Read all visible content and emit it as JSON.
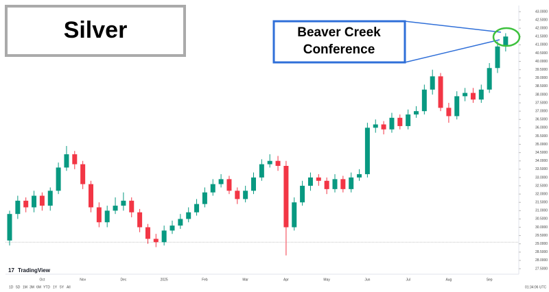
{
  "chart_data": {
    "type": "candlestick",
    "title": "Silver",
    "annotation_lines": [
      "Beaver Creek",
      "Conference"
    ],
    "up_color": "#089981",
    "down_color": "#f23645",
    "hline": 29.1,
    "grid": false,
    "categories": [
      null,
      null,
      null,
      null,
      "Oct",
      null,
      null,
      null,
      null,
      "Nov",
      null,
      null,
      null,
      null,
      "Dec",
      null,
      null,
      null,
      null,
      "2025",
      null,
      null,
      null,
      null,
      "Feb",
      null,
      null,
      null,
      null,
      "Mar",
      null,
      null,
      null,
      null,
      "Apr",
      null,
      null,
      null,
      null,
      "May",
      null,
      null,
      null,
      null,
      "Jun",
      null,
      null,
      null,
      null,
      "Jul",
      null,
      null,
      null,
      null,
      "Aug",
      null,
      null,
      null,
      null,
      "Sep",
      null,
      null
    ],
    "open": [
      29.2,
      30.8,
      31.6,
      31.2,
      31.9,
      31.3,
      32.2,
      33.6,
      34.4,
      33.8,
      32.6,
      31.2,
      30.3,
      31.0,
      31.3,
      31.6,
      30.9,
      30.0,
      29.3,
      29.1,
      29.8,
      30.1,
      30.5,
      30.9,
      31.4,
      32.1,
      32.6,
      32.9,
      32.2,
      31.7,
      32.2,
      33.0,
      33.8,
      34.0,
      33.7,
      30.0,
      31.5,
      32.5,
      33.0,
      32.8,
      32.3,
      32.9,
      32.3,
      33.0,
      33.2,
      36.0,
      36.2,
      35.9,
      36.6,
      36.1,
      36.8,
      37.0,
      38.3,
      39.1,
      37.2,
      36.7,
      37.9,
      38.1,
      37.7,
      38.3,
      39.6,
      40.9
    ],
    "high": [
      31.0,
      31.9,
      31.8,
      32.2,
      32.1,
      32.4,
      33.9,
      34.9,
      34.6,
      34.0,
      32.8,
      31.5,
      31.3,
      31.8,
      32.1,
      31.8,
      31.1,
      30.2,
      29.6,
      30.1,
      30.4,
      30.8,
      31.2,
      31.7,
      32.4,
      32.9,
      33.2,
      33.1,
      32.4,
      32.5,
      33.3,
      34.1,
      34.4,
      34.3,
      34.0,
      31.8,
      32.8,
      33.3,
      33.2,
      33.0,
      33.2,
      33.1,
      33.3,
      33.5,
      36.3,
      36.5,
      36.4,
      36.9,
      36.8,
      37.1,
      37.3,
      38.6,
      39.5,
      39.3,
      37.5,
      38.2,
      38.4,
      38.4,
      38.6,
      39.9,
      41.2,
      41.7
    ],
    "low": [
      28.9,
      30.5,
      30.9,
      30.9,
      31.0,
      31.0,
      32.0,
      33.4,
      33.5,
      32.3,
      30.9,
      30.0,
      30.0,
      30.8,
      31.0,
      30.6,
      29.7,
      29.0,
      28.8,
      28.9,
      29.6,
      29.9,
      30.3,
      30.7,
      31.2,
      31.9,
      32.4,
      32.0,
      31.4,
      31.5,
      32.0,
      32.8,
      33.6,
      33.4,
      28.3,
      29.8,
      31.3,
      32.2,
      32.5,
      32.0,
      32.1,
      32.1,
      32.1,
      32.8,
      33.0,
      35.7,
      35.6,
      35.7,
      35.9,
      35.9,
      36.6,
      36.8,
      38.0,
      37.0,
      36.3,
      36.5,
      37.6,
      37.5,
      37.5,
      38.1,
      39.3,
      40.6
    ],
    "close": [
      30.8,
      31.6,
      31.2,
      31.9,
      31.3,
      32.2,
      33.6,
      34.4,
      33.8,
      32.6,
      31.2,
      30.3,
      31.0,
      31.3,
      31.6,
      30.9,
      30.0,
      29.3,
      29.1,
      29.8,
      30.1,
      30.5,
      30.9,
      31.4,
      32.1,
      32.6,
      32.9,
      32.2,
      31.7,
      32.2,
      33.0,
      33.8,
      34.0,
      33.7,
      30.0,
      31.5,
      32.5,
      33.0,
      32.8,
      32.3,
      32.9,
      32.3,
      33.0,
      33.2,
      36.0,
      36.2,
      35.9,
      36.6,
      36.1,
      36.8,
      37.0,
      38.3,
      39.1,
      37.2,
      36.7,
      37.9,
      38.1,
      37.7,
      38.3,
      39.6,
      40.9,
      41.5
    ],
    "ylim": [
      27.5,
      43.0
    ],
    "yticks": [
      {
        "value": 27.5,
        "label": "27.5000"
      },
      {
        "value": 28,
        "label": "28.0000"
      },
      {
        "value": 28.5,
        "label": "28.5000"
      },
      {
        "value": 29,
        "label": "29.0000"
      },
      {
        "value": 29.5,
        "label": "29.5000"
      },
      {
        "value": 30,
        "label": "30.0000"
      },
      {
        "value": 30.5,
        "label": "30.5000"
      },
      {
        "value": 31,
        "label": "31.0000"
      },
      {
        "value": 31.5,
        "label": "31.5000"
      },
      {
        "value": 32,
        "label": "32.0000"
      },
      {
        "value": 32.5,
        "label": "32.5000"
      },
      {
        "value": 33,
        "label": "33.0000"
      },
      {
        "value": 33.5,
        "label": "33.5000"
      },
      {
        "value": 34,
        "label": "34.0000"
      },
      {
        "value": 34.5,
        "label": "34.5000"
      },
      {
        "value": 35,
        "label": "35.0000"
      },
      {
        "value": 35.5,
        "label": "35.5000"
      },
      {
        "value": 36,
        "label": "36.0000"
      },
      {
        "value": 36.5,
        "label": "36.5000"
      },
      {
        "value": 37,
        "label": "37.0000"
      },
      {
        "value": 37.5,
        "label": "37.5000"
      },
      {
        "value": 38,
        "label": "38.0000"
      },
      {
        "value": 38.5,
        "label": "38.5000"
      },
      {
        "value": 39,
        "label": "39.0000"
      },
      {
        "value": 39.5,
        "label": "39.5000"
      },
      {
        "value": 40,
        "label": "40.0000"
      },
      {
        "value": 40.5,
        "label": "40.5000"
      },
      {
        "value": 41,
        "label": "41.0000"
      },
      {
        "value": 41.5,
        "label": "41.5000"
      },
      {
        "value": 42,
        "label": "42.0000"
      },
      {
        "value": 42.5,
        "label": "42.5000"
      },
      {
        "value": 43,
        "label": "43.0000"
      }
    ]
  },
  "ui": {
    "brand": "TradingView",
    "ranges": [
      "1D",
      "5D",
      "1M",
      "3M",
      "6M",
      "YTD",
      "1Y",
      "5Y",
      "All"
    ],
    "time": "01:34:06 UTC"
  }
}
